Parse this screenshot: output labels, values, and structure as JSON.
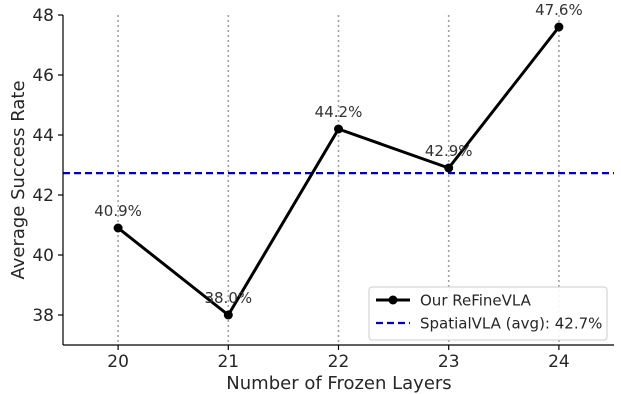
{
  "chart_data": {
    "type": "line",
    "title": "",
    "xlabel": "Number of Frozen Layers",
    "ylabel": "Average Success Rate",
    "x": [
      20,
      21,
      22,
      23,
      24
    ],
    "x_ticks": [
      20,
      21,
      22,
      23,
      24
    ],
    "y_ticks": [
      38,
      40,
      42,
      44,
      46,
      48
    ],
    "xlim": [
      19.5,
      24.5
    ],
    "ylim": [
      37.0,
      48.0
    ],
    "grid": "vertical-dotted",
    "legend_position": "bottom-right",
    "series": [
      {
        "name": "Our ReFineVLA",
        "values": [
          40.9,
          38.0,
          44.2,
          42.9,
          47.6
        ],
        "labels": [
          "40.9%",
          "38.0%",
          "44.2%",
          "42.9%",
          "47.6%"
        ],
        "color": "#000000",
        "style": "solid-marker"
      }
    ],
    "reference_lines": [
      {
        "name": "SpatialVLA (avg): 42.7%",
        "value": 42.73,
        "color": "#0000cc",
        "style": "dashed"
      }
    ]
  }
}
